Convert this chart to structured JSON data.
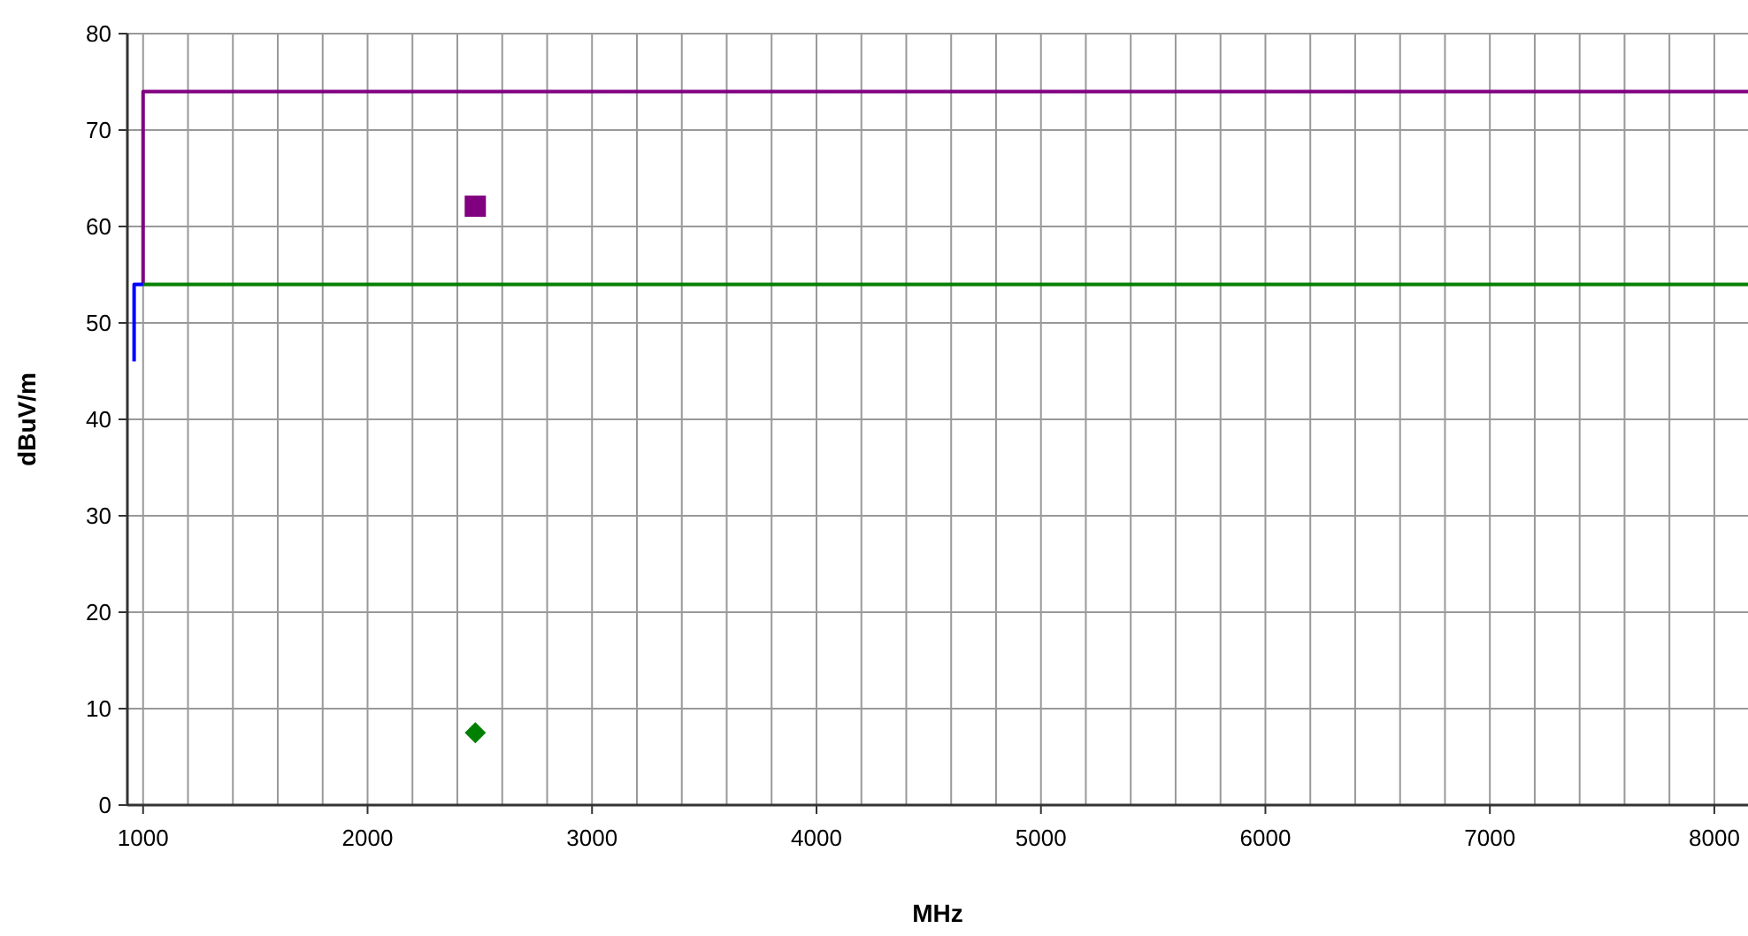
{
  "chart_data": {
    "type": "line",
    "xlabel": "MHz",
    "ylabel": "dBuV/m",
    "xlim": [
      930,
      8150
    ],
    "ylim": [
      0,
      80
    ],
    "xticks": [
      1000,
      {
        "value": 1200,
        "label": null
      },
      {
        "value": 1400,
        "label": null
      },
      {
        "value": 1600,
        "label": null
      },
      {
        "value": 1800,
        "label": null
      },
      2000,
      {
        "value": 2200,
        "label": null
      },
      {
        "value": 2400,
        "label": null
      },
      {
        "value": 2600,
        "label": null
      },
      {
        "value": 2800,
        "label": null
      },
      3000,
      {
        "value": 3200,
        "label": null
      },
      {
        "value": 3400,
        "label": null
      },
      {
        "value": 3600,
        "label": null
      },
      {
        "value": 3800,
        "label": null
      },
      4000,
      {
        "value": 4200,
        "label": null
      },
      {
        "value": 4400,
        "label": null
      },
      {
        "value": 4600,
        "label": null
      },
      {
        "value": 4800,
        "label": null
      },
      5000,
      {
        "value": 5200,
        "label": null
      },
      {
        "value": 5400,
        "label": null
      },
      {
        "value": 5600,
        "label": null
      },
      {
        "value": 5800,
        "label": null
      },
      6000,
      {
        "value": 6200,
        "label": null
      },
      {
        "value": 6400,
        "label": null
      },
      {
        "value": 6600,
        "label": null
      },
      {
        "value": 6800,
        "label": null
      },
      7000,
      {
        "value": 7200,
        "label": null
      },
      {
        "value": 7400,
        "label": null
      },
      {
        "value": 7600,
        "label": null
      },
      {
        "value": 7800,
        "label": null
      },
      8000
    ],
    "yticks": [
      0,
      10,
      20,
      30,
      40,
      50,
      60,
      70,
      80
    ],
    "grid": true,
    "series": [
      {
        "color": "#800080",
        "x": [
          1000,
          1000,
          8150
        ],
        "values": [
          54,
          74,
          74
        ]
      },
      {
        "color": "#008000",
        "x": [
          1000,
          8150
        ],
        "values": [
          54,
          54
        ]
      },
      {
        "color": "#0000ff",
        "x": [
          960,
          960,
          1000
        ],
        "values": [
          46,
          54,
          54
        ]
      },
      {
        "type": "scatter",
        "color": "#800080",
        "marker": "square",
        "x": [
          2480
        ],
        "values": [
          62.1
        ]
      },
      {
        "type": "scatter",
        "color": "#008000",
        "marker": "diamond",
        "x": [
          2480
        ],
        "values": [
          7.5
        ]
      }
    ]
  }
}
